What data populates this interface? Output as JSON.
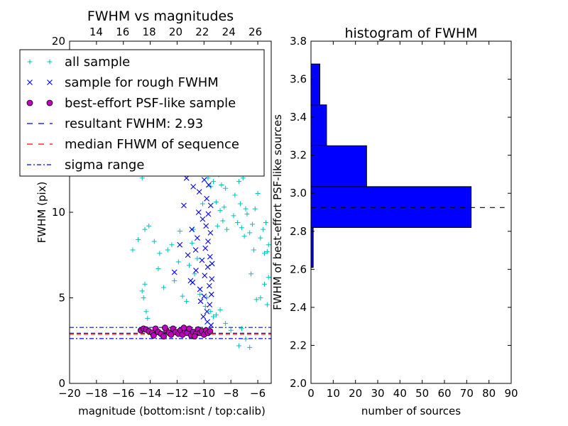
{
  "chart_data": [
    {
      "type": "scatter",
      "title": "FWHM vs magnitudes",
      "xlabel": "magnitude (bottom:isnt / top:calib)",
      "ylabel": "FWHM (pix)",
      "xlim": [
        -20,
        -5
      ],
      "ylim": [
        0,
        20
      ],
      "xticks": [
        "−20",
        "−18",
        "−16",
        "−14",
        "−12",
        "−10",
        "−8",
        "−6"
      ],
      "yticks": [
        "0",
        "5",
        "10",
        "20"
      ],
      "top_axis": {
        "ticks": [
          "14",
          "16",
          "18",
          "20",
          "22",
          "24",
          "26"
        ],
        "range": [
          12,
          27.2
        ]
      },
      "grid": false,
      "legend": {
        "placement": "upper-left",
        "entries": [
          {
            "label": "all sample",
            "marker": "+",
            "color": "#00bfbf"
          },
          {
            "label": "sample for rough FWHM",
            "marker": "x",
            "color": "#0000ff"
          },
          {
            "label": "best-effort PSF-like sample",
            "marker": "o",
            "color": "#bf00bf"
          },
          {
            "label": "resultant FWHM: 2.93",
            "line": "dashed",
            "color": "#0000ff"
          },
          {
            "label": "median FHWM of sequence",
            "line": "dashed",
            "color": "#ff0000"
          },
          {
            "label": "sigma range",
            "line": "dashdot",
            "color": "#0000ff"
          }
        ]
      },
      "hlines": [
        {
          "name": "resultant",
          "y": 2.93,
          "color": "#0000ff"
        },
        {
          "name": "median",
          "y": 2.86,
          "color": "#ff0000"
        },
        {
          "name": "sigma-upper",
          "y": 3.27,
          "color": "#0000ff"
        },
        {
          "name": "sigma-lower",
          "y": 2.62,
          "color": "#0000ff"
        }
      ],
      "series": [
        {
          "name": "all sample",
          "marker": "+",
          "color": "#00bfbf",
          "points": [
            [
              -15.3,
              7.8
            ],
            [
              -14.9,
              8.4
            ],
            [
              -14.4,
              9.0
            ],
            [
              -14.6,
              12.0
            ],
            [
              -14.4,
              5.8
            ],
            [
              -14.5,
              5.0
            ],
            [
              -14.3,
              4.2
            ],
            [
              -14.2,
              3.8
            ],
            [
              -14.6,
              5.4
            ],
            [
              -14.1,
              9.2
            ],
            [
              -13.7,
              8.3
            ],
            [
              -13.4,
              6.7
            ],
            [
              -13.3,
              7.6
            ],
            [
              -13.0,
              5.6
            ],
            [
              -12.7,
              7.8
            ],
            [
              -12.4,
              8.1
            ],
            [
              -12.2,
              6.0
            ],
            [
              -11.9,
              7.1
            ],
            [
              -11.8,
              8.9
            ],
            [
              -11.6,
              5.1
            ],
            [
              -11.3,
              4.8
            ],
            [
              -11.1,
              6.9
            ],
            [
              -10.9,
              8.2
            ],
            [
              -10.8,
              9.0
            ],
            [
              -10.7,
              6.4
            ],
            [
              -10.5,
              7.3
            ],
            [
              -10.3,
              5.2
            ],
            [
              -10.2,
              12.6
            ],
            [
              -10.1,
              10.5
            ],
            [
              -9.95,
              15.2
            ],
            [
              -9.9,
              14.3
            ],
            [
              -9.8,
              13.0
            ],
            [
              -9.7,
              12.0
            ],
            [
              -9.5,
              11.5
            ],
            [
              -9.4,
              13.8
            ],
            [
              -9.3,
              11.8
            ],
            [
              -9.15,
              12.5
            ],
            [
              -9.1,
              10.6
            ],
            [
              -9.0,
              9.2
            ],
            [
              -8.9,
              12.2
            ],
            [
              -8.8,
              10.1
            ],
            [
              -8.7,
              11.6
            ],
            [
              -8.6,
              9.5
            ],
            [
              -8.5,
              10.3
            ],
            [
              -8.4,
              11.4
            ],
            [
              -8.3,
              9.0
            ],
            [
              -8.2,
              12.5
            ],
            [
              -8.1,
              19.0
            ],
            [
              -8.0,
              18.8
            ],
            [
              -7.9,
              14.2
            ],
            [
              -7.8,
              9.8
            ],
            [
              -7.7,
              11.0
            ],
            [
              -7.6,
              13.0
            ],
            [
              -7.5,
              9.4
            ],
            [
              -7.4,
              11.8
            ],
            [
              -7.3,
              10.5
            ],
            [
              -7.2,
              9.1
            ],
            [
              -7.1,
              12.0
            ],
            [
              -7.0,
              8.6
            ],
            [
              -6.9,
              10.2
            ],
            [
              -6.8,
              9.9
            ],
            [
              -6.6,
              8.8
            ],
            [
              -6.4,
              9.3
            ],
            [
              -6.2,
              10.2
            ],
            [
              -6.0,
              11.1
            ],
            [
              -5.8,
              8.5
            ],
            [
              -5.6,
              9.0
            ],
            [
              -5.4,
              9.4
            ],
            [
              -5.3,
              7.7
            ],
            [
              -5.2,
              8.1
            ],
            [
              -5.5,
              7.6
            ],
            [
              -6.3,
              7.8
            ],
            [
              -5.8,
              5.0
            ],
            [
              -5.5,
              5.8
            ],
            [
              -5.3,
              4.6
            ],
            [
              -5.2,
              6.2
            ],
            [
              -6.5,
              6.4
            ],
            [
              -6.1,
              4.9
            ],
            [
              -7.2,
              3.2
            ],
            [
              -6.9,
              2.6
            ],
            [
              -6.6,
              2.1
            ],
            [
              -7.4,
              2.2
            ],
            [
              -8.0,
              3.1
            ],
            [
              -8.4,
              3.5
            ],
            [
              -8.8,
              4.3
            ],
            [
              -9.1,
              4.0
            ],
            [
              -9.3,
              3.9
            ],
            [
              -9.5,
              4.2
            ],
            [
              -9.8,
              5.0
            ],
            [
              -9.9,
              4.5
            ],
            [
              -10.2,
              3.0
            ],
            [
              -10.4,
              3.2
            ]
          ]
        },
        {
          "name": "sample for rough FWHM",
          "marker": "x",
          "color": "#0000ff",
          "points": [
            [
              -12.2,
              6.5
            ],
            [
              -11.8,
              8.1
            ],
            [
              -11.5,
              10.4
            ],
            [
              -11.3,
              12.0
            ],
            [
              -11.2,
              7.5
            ],
            [
              -11.0,
              6.0
            ],
            [
              -10.9,
              9.0
            ],
            [
              -10.8,
              11.5
            ],
            [
              -10.7,
              13.0
            ],
            [
              -10.6,
              6.6
            ],
            [
              -10.5,
              8.5
            ],
            [
              -10.4,
              10.0
            ],
            [
              -10.35,
              11.2
            ],
            [
              -10.3,
              5.5
            ],
            [
              -10.25,
              4.8
            ],
            [
              -10.2,
              12.4
            ],
            [
              -10.15,
              7.2
            ],
            [
              -10.1,
              9.6
            ],
            [
              -10.05,
              3.9
            ],
            [
              -10.0,
              5.1
            ],
            [
              -9.95,
              6.3
            ],
            [
              -9.9,
              7.9
            ],
            [
              -9.85,
              9.2
            ],
            [
              -9.8,
              10.8
            ],
            [
              -9.78,
              4.2
            ],
            [
              -9.75,
              3.6
            ],
            [
              -9.72,
              6.8
            ],
            [
              -9.7,
              8.3
            ],
            [
              -9.68,
              9.9
            ],
            [
              -9.65,
              11.6
            ],
            [
              -9.62,
              12.9
            ],
            [
              -9.6,
              5.7
            ],
            [
              -9.58,
              4.6
            ],
            [
              -9.55,
              7.4
            ],
            [
              -9.52,
              8.8
            ],
            [
              -9.5,
              10.4
            ],
            [
              -9.48,
              3.4
            ],
            [
              -9.45,
              5.2
            ],
            [
              -9.42,
              6.1
            ],
            [
              -9.4,
              7.0
            ],
            [
              -9.98,
              11.9
            ],
            [
              -10.45,
              12.7
            ],
            [
              -10.62,
              7.8
            ],
            [
              -10.85,
              5.9
            ]
          ]
        },
        {
          "name": "best-effort PSF-like sample",
          "marker": "o",
          "color": "#bf00bf",
          "points": [
            [
              -14.7,
              3.1
            ],
            [
              -14.5,
              3.2
            ],
            [
              -14.3,
              3.15
            ],
            [
              -14.1,
              3.05
            ],
            [
              -13.85,
              2.95
            ],
            [
              -13.6,
              3.2
            ],
            [
              -13.4,
              3.0
            ],
            [
              -13.2,
              2.9
            ],
            [
              -13.0,
              2.75
            ],
            [
              -12.8,
              3.1
            ],
            [
              -12.6,
              2.95
            ],
            [
              -12.45,
              2.85
            ],
            [
              -12.3,
              3.2
            ],
            [
              -12.1,
              3.0
            ],
            [
              -11.9,
              2.9
            ],
            [
              -11.75,
              3.1
            ],
            [
              -11.6,
              2.85
            ],
            [
              -11.4,
              3.05
            ],
            [
              -11.25,
              2.95
            ],
            [
              -11.1,
              3.2
            ],
            [
              -10.95,
              2.8
            ],
            [
              -10.8,
              3.0
            ],
            [
              -10.6,
              2.9
            ],
            [
              -10.45,
              3.15
            ],
            [
              -10.3,
              2.95
            ],
            [
              -10.15,
              3.05
            ],
            [
              -10.0,
              2.85
            ],
            [
              -9.85,
              3.1
            ],
            [
              -9.7,
              2.95
            ],
            [
              -9.55,
              3.05
            ],
            [
              -12.9,
              3.25
            ],
            [
              -11.5,
              3.25
            ],
            [
              -10.7,
              2.75
            ],
            [
              -13.75,
              2.8
            ]
          ]
        }
      ]
    },
    {
      "type": "bar",
      "orientation": "horizontal",
      "title": "histogram of FWHM",
      "xlabel": "number of sources",
      "ylabel": "FWHM of best-effort PSF-like sources",
      "xlim": [
        0,
        90
      ],
      "ylim": [
        2.0,
        3.8
      ],
      "xticks": [
        "0",
        "10",
        "20",
        "30",
        "40",
        "50",
        "60",
        "70",
        "80",
        "90"
      ],
      "yticks": [
        "2.0",
        "2.2",
        "2.4",
        "2.6",
        "2.8",
        "3.0",
        "3.2",
        "3.4",
        "3.6",
        "3.8"
      ],
      "bar_color": "#0000ff",
      "bins": [
        {
          "from": 2.61,
          "to": 2.82,
          "count": 1
        },
        {
          "from": 2.82,
          "to": 3.035,
          "count": 72
        },
        {
          "from": 3.035,
          "to": 3.25,
          "count": 25
        },
        {
          "from": 3.25,
          "to": 3.465,
          "count": 7
        },
        {
          "from": 3.465,
          "to": 3.68,
          "count": 4
        }
      ],
      "reference_line": {
        "y": 2.925,
        "x_range": [
          0,
          87
        ],
        "style": "dashed",
        "color": "#000000"
      }
    }
  ]
}
